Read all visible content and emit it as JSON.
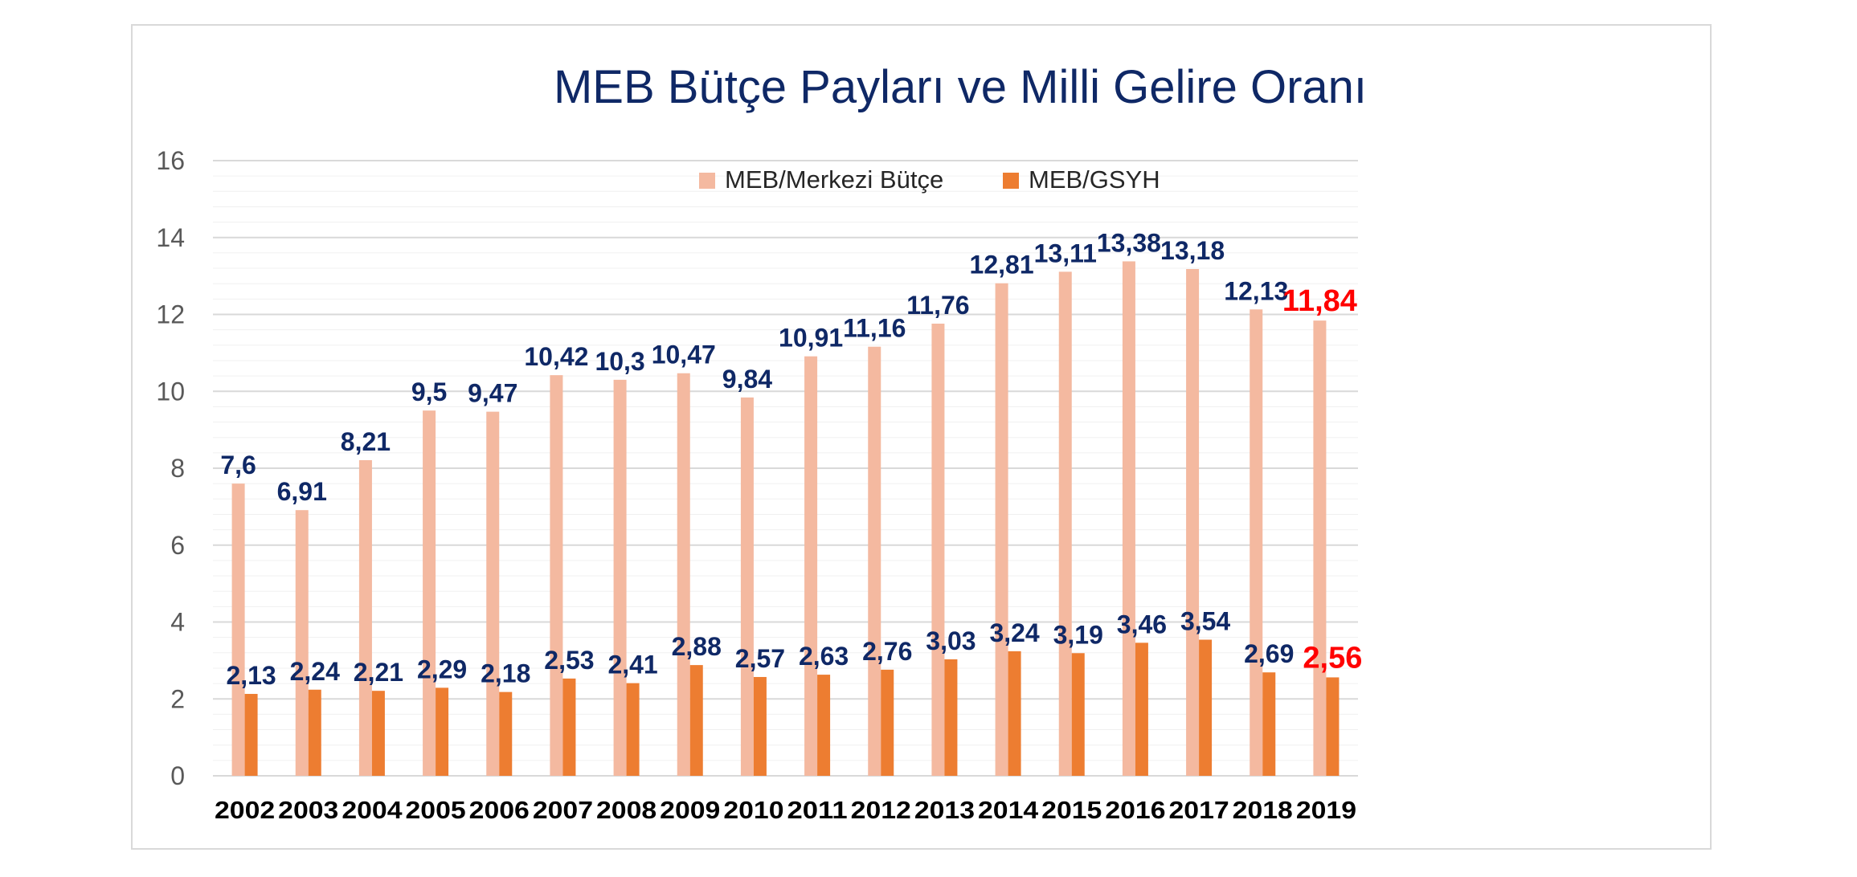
{
  "chart_data": {
    "type": "bar",
    "title": "MEB Bütçe Payları ve Milli Gelire Oranı",
    "xlabel": "",
    "ylabel": "",
    "ylim": [
      0,
      16
    ],
    "yticks": [
      "0",
      "2",
      "4",
      "6",
      "8",
      "10",
      "12",
      "14",
      "16"
    ],
    "grid": true,
    "legend_position": "top-center",
    "categories": [
      "2002",
      "2003",
      "2004",
      "2005",
      "2006",
      "2007",
      "2008",
      "2009",
      "2010",
      "2011",
      "2012",
      "2013",
      "2014",
      "2015",
      "2016",
      "2017",
      "2018",
      "2019"
    ],
    "series": [
      {
        "name": "MEB/Merkezi Bütçe",
        "color": "#f4b9a0",
        "values": [
          7.6,
          6.91,
          8.21,
          9.5,
          9.47,
          10.42,
          10.3,
          10.47,
          9.84,
          10.91,
          11.16,
          11.76,
          12.81,
          13.11,
          13.38,
          13.18,
          12.13,
          11.84
        ],
        "labels": [
          "7,6",
          "6,91",
          "8,21",
          "9,5",
          "9,47",
          "10,42",
          "10,3",
          "10,47",
          "9,84",
          "10,91",
          "11,16",
          "11,76",
          "12,81",
          "13,11",
          "13,38",
          "13,18",
          "12,13",
          "11,84"
        ]
      },
      {
        "name": "MEB/GSYH",
        "color": "#ed7d31",
        "values": [
          2.13,
          2.24,
          2.21,
          2.29,
          2.18,
          2.53,
          2.41,
          2.88,
          2.57,
          2.63,
          2.76,
          3.03,
          3.24,
          3.19,
          3.46,
          3.54,
          2.69,
          2.56
        ],
        "labels": [
          "2,13",
          "2,24",
          "2,21",
          "2,29",
          "2,18",
          "2,53",
          "2,41",
          "2,88",
          "2,57",
          "2,63",
          "2,76",
          "3,03",
          "3,24",
          "3,19",
          "3,46",
          "3,54",
          "2,69",
          "2,56"
        ]
      }
    ],
    "label_color": "#0f2866",
    "highlight_label_color": "#ff0000",
    "highlight_category": "2019"
  }
}
